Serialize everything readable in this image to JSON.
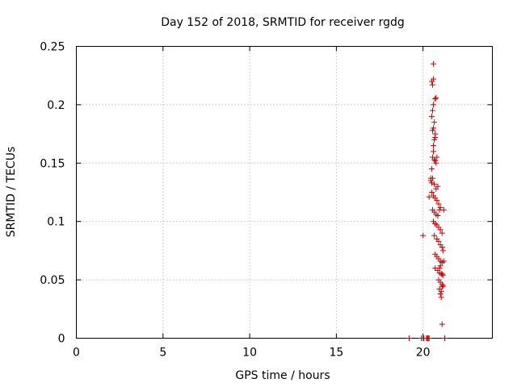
{
  "chart_data": {
    "type": "scatter",
    "title": "Day 152 of 2018, SRMTID for receiver rgdg",
    "xlabel": "GPS time / hours",
    "ylabel": "SRMTID / TECUs",
    "xlim": [
      0,
      24
    ],
    "ylim": [
      0,
      0.25
    ],
    "x_ticks": [
      0,
      5,
      10,
      15,
      20
    ],
    "x_tick_labels": [
      "0",
      "5",
      "10",
      "15",
      "20"
    ],
    "y_ticks": [
      0,
      0.05,
      0.1,
      0.15,
      0.2,
      0.25
    ],
    "y_tick_labels": [
      "0",
      "0.05",
      "0.1",
      "0.15",
      "0.2",
      "0.25"
    ],
    "grid": true,
    "marker": "plus",
    "color": "#cc0000",
    "series": [
      {
        "x": [
          19.2,
          19.9,
          20.0,
          20.05,
          20.2,
          20.25,
          20.3,
          20.35,
          21.25,
          20.0,
          20.35,
          20.45,
          20.5,
          20.55,
          20.6,
          20.6,
          20.65,
          20.7,
          20.7,
          20.55,
          20.6,
          20.65,
          20.5,
          20.55,
          20.6,
          20.7,
          20.75,
          20.5,
          20.55,
          20.6,
          20.6,
          20.65,
          20.7,
          20.75,
          20.8,
          20.45,
          20.5,
          20.55,
          20.65,
          20.75,
          20.85,
          20.5,
          20.6,
          20.7,
          20.8,
          20.9,
          20.55,
          20.65,
          20.75,
          20.85,
          20.95,
          21.0,
          21.2,
          20.6,
          20.7,
          20.8,
          20.9,
          21.0,
          21.1,
          20.65,
          20.8,
          20.9,
          21.0,
          21.1,
          21.15,
          20.7,
          20.8,
          20.9,
          21.0,
          21.1,
          21.2,
          20.7,
          20.85,
          20.95,
          21.05,
          21.15,
          20.9,
          21.0,
          21.1,
          21.15,
          20.95,
          21.05,
          21.1,
          21.0,
          21.05,
          21.1,
          20.95,
          21.0,
          21.1,
          21.1
        ],
        "y": [
          0.0,
          0.0,
          0.0,
          0.0,
          0.0,
          0.0,
          0.0,
          0.0,
          0.0,
          0.088,
          0.121,
          0.137,
          0.145,
          0.155,
          0.16,
          0.165,
          0.17,
          0.172,
          0.175,
          0.178,
          0.18,
          0.185,
          0.19,
          0.195,
          0.2,
          0.205,
          0.206,
          0.22,
          0.217,
          0.222,
          0.235,
          0.153,
          0.152,
          0.15,
          0.155,
          0.135,
          0.133,
          0.137,
          0.132,
          0.128,
          0.13,
          0.125,
          0.122,
          0.12,
          0.118,
          0.115,
          0.11,
          0.108,
          0.106,
          0.105,
          0.11,
          0.112,
          0.11,
          0.1,
          0.098,
          0.097,
          0.095,
          0.093,
          0.09,
          0.088,
          0.085,
          0.083,
          0.08,
          0.078,
          0.075,
          0.072,
          0.07,
          0.068,
          0.066,
          0.065,
          0.066,
          0.06,
          0.058,
          0.056,
          0.055,
          0.054,
          0.05,
          0.048,
          0.046,
          0.045,
          0.042,
          0.04,
          0.044,
          0.038,
          0.035,
          0.055,
          0.06,
          0.062,
          0.065,
          0.012
        ]
      }
    ]
  }
}
